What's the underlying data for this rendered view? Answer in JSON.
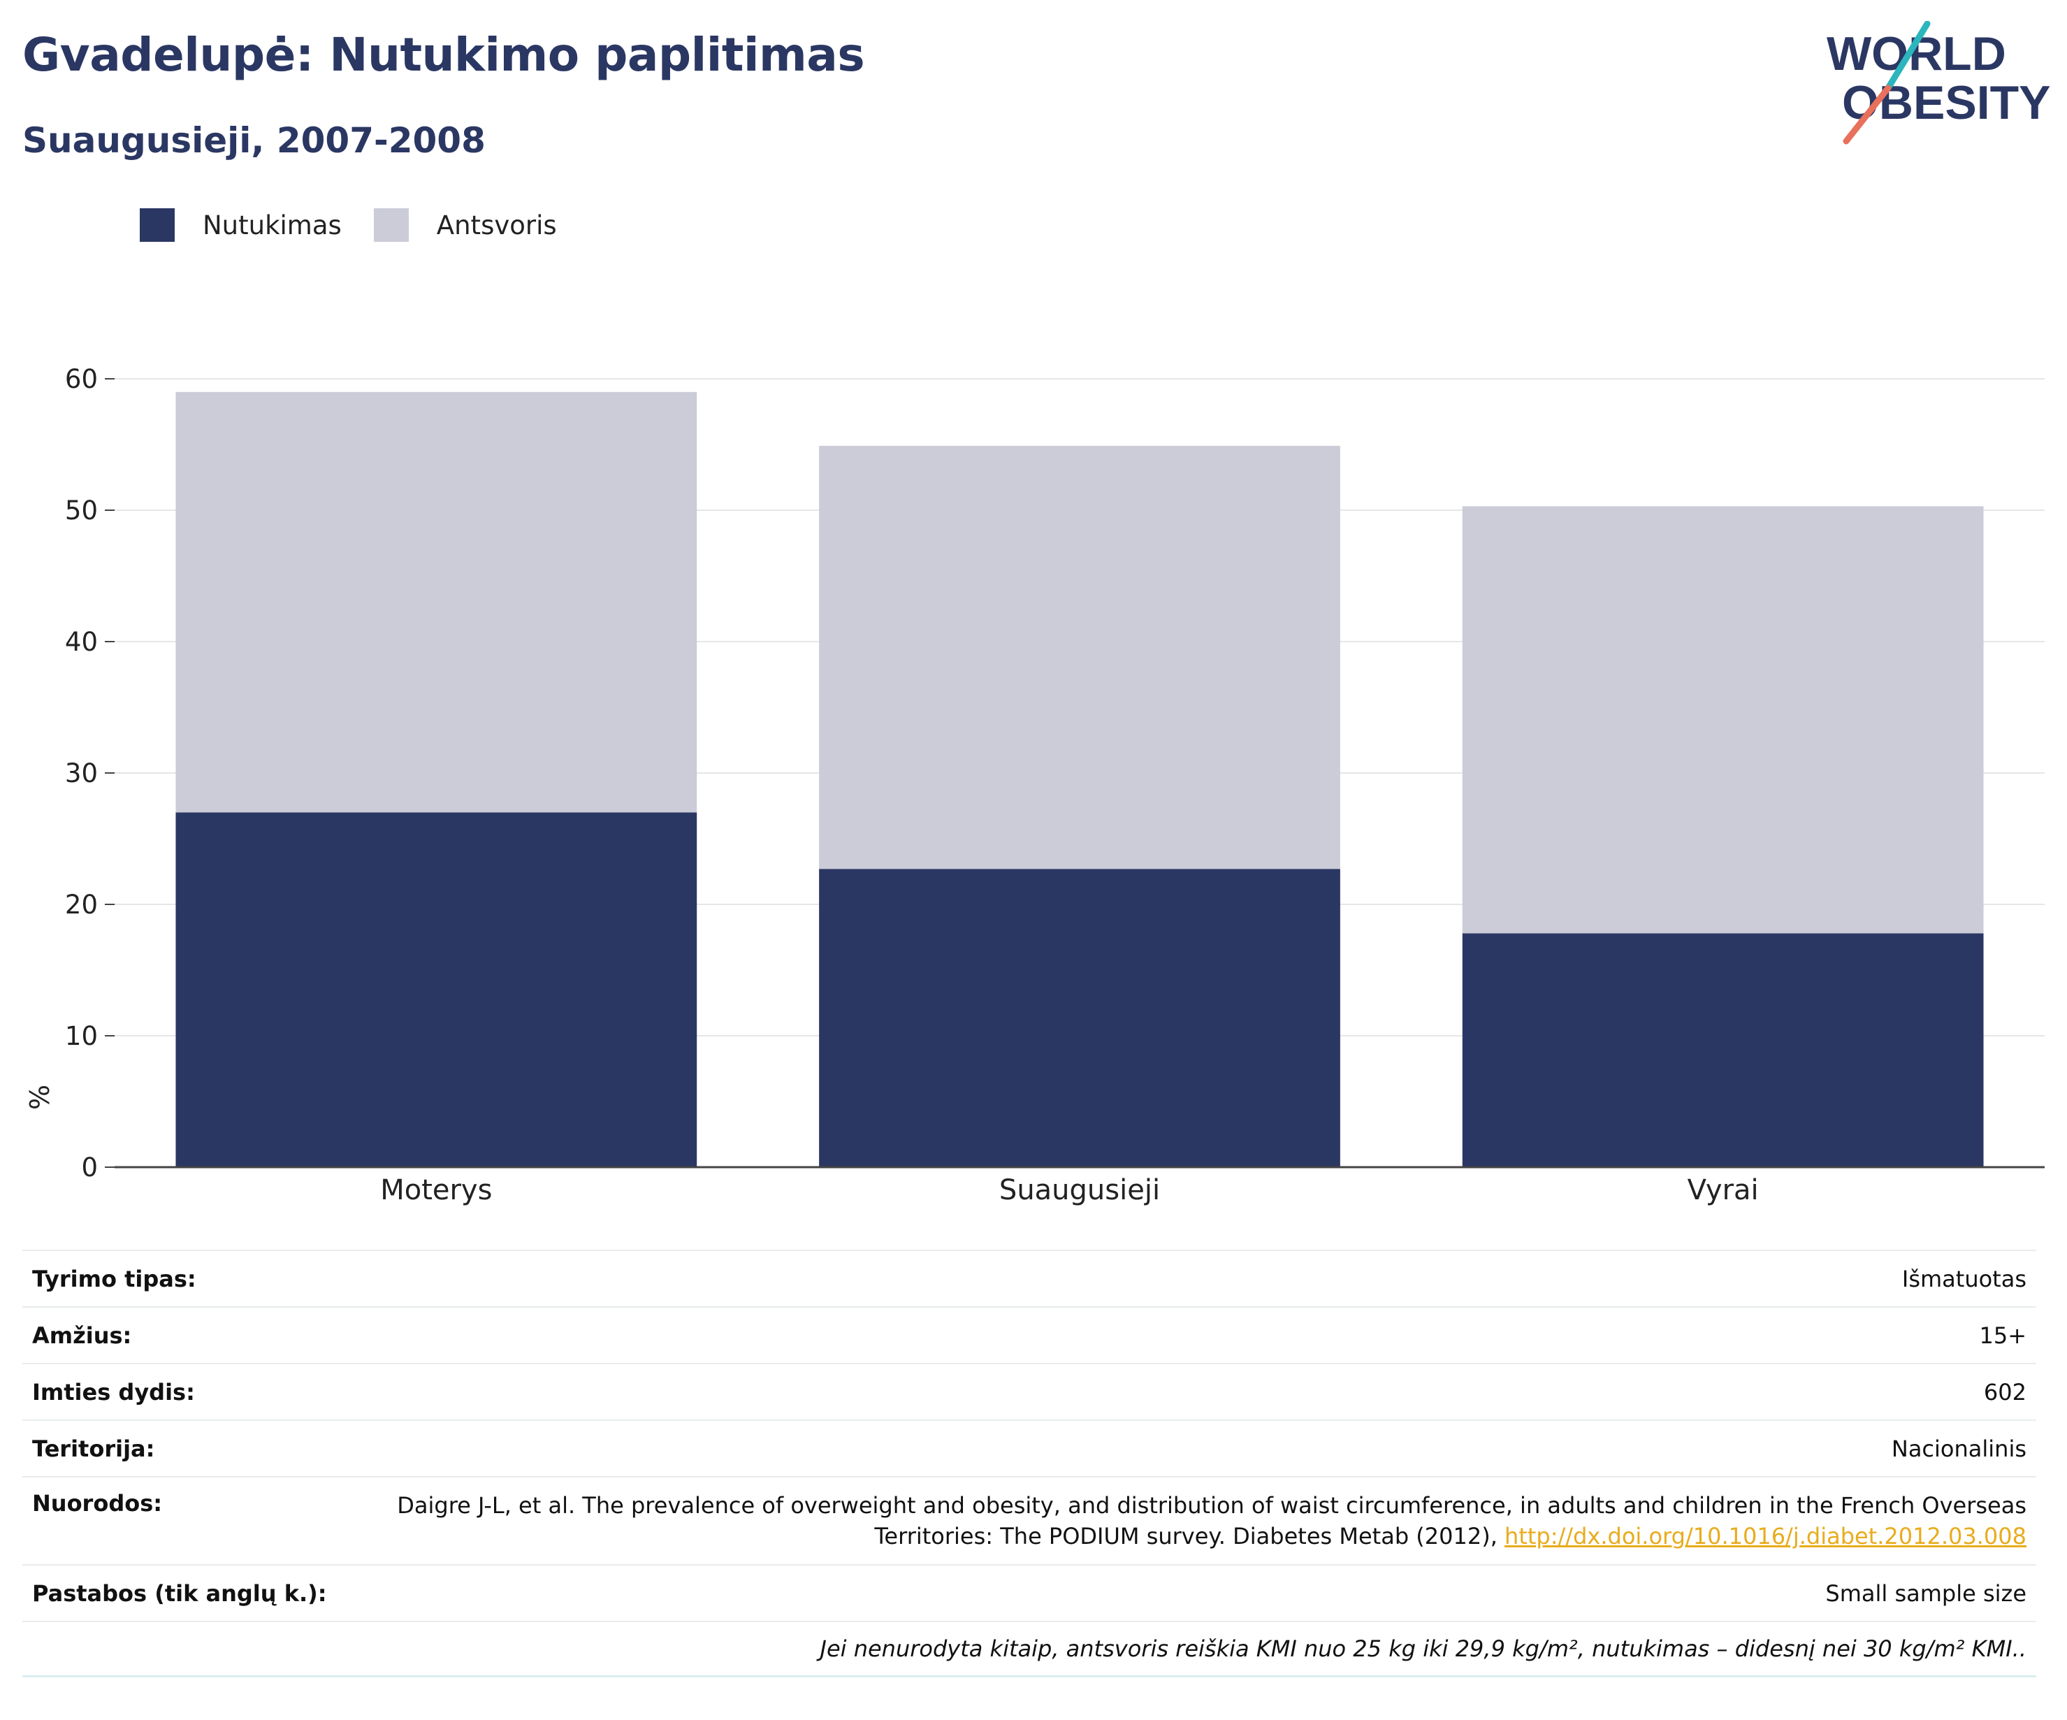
{
  "header": {
    "title": "Gvadelupė: Nutukimo paplitimas",
    "subtitle": "Suaugusieji, 2007-2008"
  },
  "logo": {
    "line1": "WORLD",
    "line2": "OBESITY",
    "colors": {
      "text": "#2b3763",
      "slash_top": "#2bb5bd",
      "slash_bottom": "#e8705c"
    }
  },
  "legend": [
    {
      "label": "Nutukimas",
      "color": "#2b3763"
    },
    {
      "label": "Antsvoris",
      "color": "#cbccd8"
    }
  ],
  "chart_data": {
    "type": "bar",
    "stacked": true,
    "categories": [
      "Moterys",
      "Suaugusieji",
      "Vyrai"
    ],
    "series": [
      {
        "name": "Nutukimas",
        "values": [
          27.0,
          22.7,
          17.8
        ],
        "color": "#2b3763"
      },
      {
        "name": "Antsvoris",
        "values": [
          32.0,
          32.2,
          32.5
        ],
        "color": "#cbccd8"
      }
    ],
    "ylabel": "%",
    "ylim": [
      0,
      60
    ],
    "yticks": [
      0,
      10,
      20,
      30,
      40,
      50,
      60
    ],
    "grid": true,
    "legend_position": "top-left"
  },
  "meta": [
    {
      "key": "Tyrimo tipas:",
      "value": "Išmatuotas"
    },
    {
      "key": "Amžius:",
      "value": "15+"
    },
    {
      "key": "Imties dydis:",
      "value": "602"
    },
    {
      "key": "Teritorija:",
      "value": "Nacionalinis"
    }
  ],
  "references": {
    "key": "Nuorodos:",
    "text": "Daigre J-L, et al. The prevalence of overweight and obesity, and distribution of waist circumference, in adults and children in the French Overseas Territories: The PODIUM survey. Diabetes Metab (2012), ",
    "link": "http://dx.doi.org/10.1016/j.diabet.2012.03.008"
  },
  "notes": {
    "key": "Pastabos (tik anglų k.):",
    "value": "Small sample size"
  },
  "footnote": "Jei nenurodyta kitaip, antsvoris reiškia KMI nuo 25 kg iki 29,9 kg/m², nutukimas – didesnį nei 30 kg/m² KMI.."
}
